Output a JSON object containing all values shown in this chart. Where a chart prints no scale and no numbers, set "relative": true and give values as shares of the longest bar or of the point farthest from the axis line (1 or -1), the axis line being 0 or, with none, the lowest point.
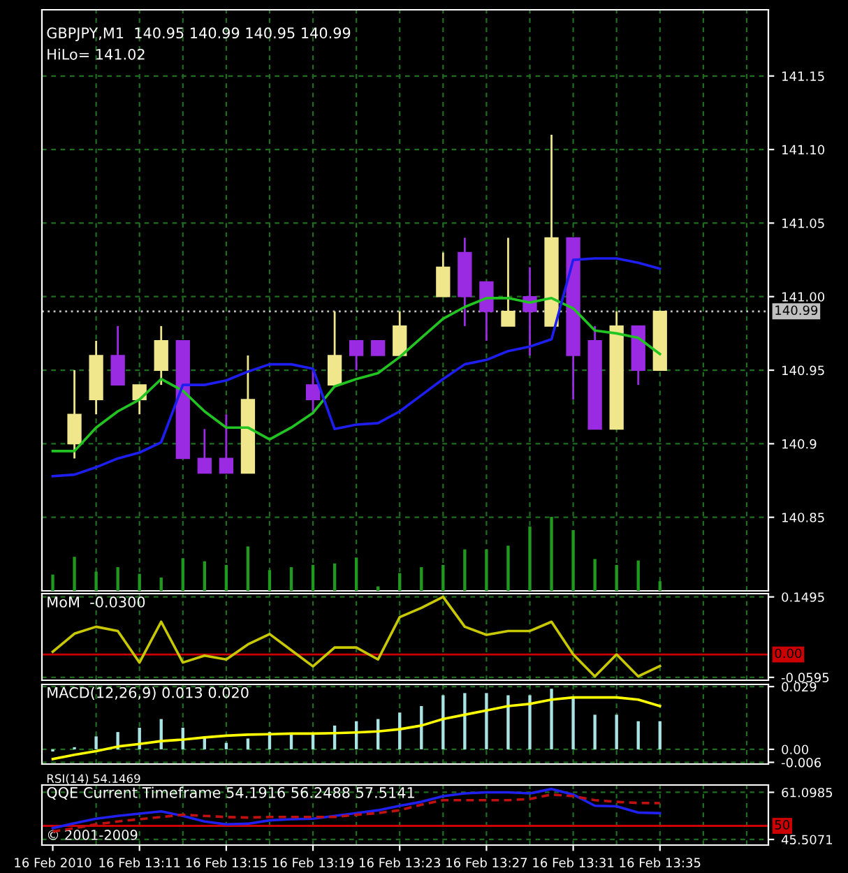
{
  "chart_data": [
    {
      "type": "candlestick",
      "title": "GBPJPY,M1  140.95 140.99 140.95 140.99",
      "subtitle": "HiLo= 141.02",
      "categories": [
        null,
        null,
        null,
        null,
        null,
        null,
        null,
        null,
        null,
        null,
        null,
        null,
        null,
        null,
        null,
        null,
        null,
        null,
        null,
        null,
        null,
        null,
        null,
        null,
        null,
        null,
        null,
        null,
        null
      ],
      "ohlc": [
        null,
        [
          140.9,
          140.95,
          140.89,
          140.92
        ],
        [
          140.93,
          140.97,
          140.92,
          140.96
        ],
        [
          140.96,
          140.98,
          140.94,
          140.94
        ],
        [
          140.93,
          140.94,
          140.92,
          140.94
        ],
        [
          140.95,
          140.98,
          140.94,
          140.97
        ],
        [
          140.97,
          140.97,
          140.89,
          140.89
        ],
        [
          140.89,
          140.91,
          140.88,
          140.88
        ],
        [
          140.89,
          140.92,
          140.88,
          140.88
        ],
        [
          140.88,
          140.96,
          140.88,
          140.93
        ],
        null,
        null,
        [
          140.94,
          140.95,
          140.92,
          140.93
        ],
        [
          140.94,
          140.99,
          140.94,
          140.96
        ],
        [
          140.97,
          140.97,
          140.95,
          140.96
        ],
        [
          140.97,
          140.97,
          140.96,
          140.96
        ],
        [
          140.96,
          140.99,
          140.96,
          140.98
        ],
        null,
        [
          141.0,
          141.03,
          141.0,
          141.02
        ],
        [
          141.03,
          141.04,
          140.98,
          141.0
        ],
        [
          141.01,
          141.01,
          140.97,
          140.99
        ],
        [
          140.98,
          141.04,
          140.98,
          140.99
        ],
        [
          141.0,
          141.02,
          140.96,
          140.99
        ],
        [
          140.98,
          141.11,
          140.98,
          141.04
        ],
        [
          141.04,
          141.04,
          140.93,
          140.96
        ],
        [
          140.97,
          140.98,
          140.91,
          140.91
        ],
        [
          140.91,
          140.99,
          140.91,
          140.98
        ],
        [
          140.98,
          140.98,
          140.94,
          140.95
        ],
        [
          140.95,
          140.99,
          140.95,
          140.99
        ]
      ],
      "colors": [
        null,
        "#f0e68c",
        "#f0e68c",
        "#9a2be2",
        "#f0e68c",
        "#f0e68c",
        "#9a2be2",
        "#9a2be2",
        "#9a2be2",
        "#f0e68c",
        null,
        null,
        "#9a2be2",
        "#f0e68c",
        "#9a2be2",
        "#9a2be2",
        "#f0e68c",
        null,
        "#f0e68c",
        "#9a2be2",
        "#9a2be2",
        "#f0e68c",
        "#9a2be2",
        "#f0e68c",
        "#9a2be2",
        "#9a2be2",
        "#f0e68c",
        "#9a2be2",
        "#f0e68c"
      ],
      "series": [
        {
          "type": "line",
          "color": "#22c422",
          "values": [
            140.895,
            140.895,
            140.911,
            140.922,
            140.93,
            140.944,
            140.936,
            140.922,
            140.911,
            140.911,
            140.903,
            140.911,
            140.921,
            140.939,
            140.944,
            140.948,
            140.959,
            140.972,
            140.985,
            140.993,
            140.999,
            140.999,
            140.996,
            140.999,
            140.992,
            140.977,
            140.975,
            140.972,
            140.961
          ]
        },
        {
          "type": "line",
          "color": "#1e1ef0",
          "values": [
            140.878,
            140.879,
            140.884,
            140.89,
            140.894,
            140.901,
            140.94,
            140.94,
            140.943,
            140.949,
            140.954,
            140.954,
            140.951,
            140.91,
            140.913,
            140.914,
            140.922,
            140.933,
            140.944,
            140.954,
            140.957,
            140.963,
            140.966,
            140.971,
            141.025,
            141.026,
            141.026,
            141.023,
            141.019
          ]
        }
      ],
      "ylim": [
        140.8,
        141.195
      ],
      "yticks": [
        140.85,
        140.9,
        140.95,
        {
          "value": 141.0,
          "label": "141.00"
        },
        141.05,
        {
          "value": 141.1,
          "label": "141.10"
        },
        141.15
      ],
      "ref_lines": [
        {
          "axis": "y",
          "value": 140.99,
          "label": "140.99",
          "color": "#c0c0c0",
          "line_style": "dotted"
        }
      ],
      "grid": true,
      "tick_labels": "y"
    },
    {
      "type": "bar",
      "relative": true,
      "tick_labels": false,
      "categories": [
        null,
        null,
        null,
        null,
        null,
        null,
        null,
        null,
        null,
        null,
        null,
        null,
        null,
        null,
        null,
        null,
        null,
        null,
        null,
        null,
        null,
        null,
        null,
        null,
        null,
        null,
        null,
        null,
        null
      ],
      "series": [
        {
          "color": "#1f9a1f",
          "values": [
            0.22,
            0.46,
            0.26,
            0.32,
            0.23,
            0.18,
            0.44,
            0.4,
            0.35,
            0.6,
            0.28,
            0.32,
            0.35,
            0.37,
            0.45,
            0.06,
            0.24,
            0.32,
            0.35,
            0.56,
            0.56,
            0.61,
            0.87,
            1,
            0.82,
            0.43,
            0.35,
            0.41,
            0.13
          ]
        }
      ]
    },
    {
      "type": "line",
      "title": "MoM  -0.0300",
      "categories": [
        null,
        null,
        null,
        null,
        null,
        null,
        null,
        null,
        null,
        null,
        null,
        null,
        null,
        null,
        null,
        null,
        null,
        null,
        null,
        null,
        null,
        null,
        null,
        null,
        null,
        null,
        null,
        null,
        null
      ],
      "series": [
        {
          "color": "#c8c800",
          "values": [
            0.007,
            0.054,
            0.072,
            0.061,
            -0.021,
            0.085,
            -0.021,
            -0.003,
            -0.013,
            0.026,
            0.053,
            0.011,
            -0.031,
            0.018,
            0.018,
            -0.013,
            0.097,
            0.121,
            0.1495,
            0.072,
            0.051,
            0.061,
            0.061,
            0.085,
            0,
            -0.057,
            0,
            -0.057,
            -0.03
          ]
        }
      ],
      "ylim": [
        -0.067,
        0.158
      ],
      "yticks": [
        0.1495,
        -0.0595
      ],
      "ref_lines": [
        {
          "axis": "y",
          "value": 0,
          "label": "0.00",
          "color": "#cc0000"
        }
      ],
      "grid": true,
      "tick_labels": "y"
    },
    {
      "type": "bar",
      "title": "MACD(12,26,9) 0.013 0.020",
      "annotations": [
        "RSI(14) 54.1469"
      ],
      "categories": [
        null,
        null,
        null,
        null,
        null,
        null,
        null,
        null,
        null,
        null,
        null,
        null,
        null,
        null,
        null,
        null,
        null,
        null,
        null,
        null,
        null,
        null,
        null,
        null,
        null,
        null,
        null,
        null,
        null
      ],
      "series": [
        {
          "type": "bar",
          "color": "#a8e4e4",
          "values": [
            -0.001,
            0.001,
            0.006,
            0.008,
            0.01,
            0.014,
            0.01,
            0.006,
            0.003,
            0.005,
            0.008,
            0.007,
            0.007,
            0.011,
            0.013,
            0.014,
            0.017,
            0.02,
            0.025,
            0.026,
            0.026,
            0.025,
            0.025,
            0.028,
            0.024,
            0.016,
            0.016,
            0.013,
            0.013
          ]
        },
        {
          "type": "line",
          "color": "#ffff00",
          "values": [
            -0.0045,
            -0.0025,
            -0.0008,
            0.0013,
            0.0025,
            0.0038,
            0.0045,
            0.0055,
            0.0063,
            0.0068,
            0.007,
            0.0073,
            0.0073,
            0.0075,
            0.0078,
            0.0083,
            0.0093,
            0.011,
            0.014,
            0.016,
            0.018,
            0.02,
            0.021,
            0.023,
            0.024,
            0.024,
            0.024,
            0.023,
            0.02
          ]
        }
      ],
      "ylim": [
        -0.0068,
        0.03
      ],
      "yticks": [
        0.029,
        {
          "value": 0,
          "label": "0.00"
        },
        -0.006
      ],
      "grid": true,
      "tick_labels": "y"
    },
    {
      "type": "line",
      "title": "QQE Current Timeframe 54.1916 56.2488 57.5141",
      "categories": [
        "16 Feb 2010",
        null,
        null,
        null,
        "16 Feb 13:11",
        null,
        null,
        null,
        "16 Feb 13:15",
        null,
        null,
        null,
        "16 Feb 13:19",
        null,
        null,
        null,
        "16 Feb 13:23",
        null,
        null,
        null,
        "16 Feb 13:27",
        null,
        null,
        null,
        "16 Feb 13:31",
        null,
        null,
        null,
        "16 Feb 13:35"
      ],
      "series": [
        {
          "color": "#2020f0",
          "values": [
            49.22,
            50.89,
            52.37,
            53.3,
            54.04,
            54.79,
            53.3,
            51.45,
            50.52,
            50.71,
            51.82,
            52.19,
            52.37,
            53.3,
            54.23,
            55.16,
            56.64,
            57.94,
            59.8,
            60.73,
            61.1,
            61.1,
            60.73,
            62.21,
            60.36,
            56.64,
            56.46,
            54.4,
            54.19
          ]
        },
        {
          "color": "#c01010",
          "line_style": "dashed",
          "values": [
            48.11,
            49.22,
            50.52,
            51.45,
            52.19,
            52.93,
            53.67,
            53.3,
            52.93,
            52.75,
            52.93,
            52.93,
            52.93,
            52.93,
            53.67,
            54.23,
            55.16,
            57.01,
            58.5,
            58.5,
            58.5,
            58.5,
            58.87,
            60.36,
            59.8,
            58.5,
            57.94,
            57.57,
            57.51
          ]
        }
      ],
      "ylim": [
        43.65,
        63.51
      ],
      "yticks": [
        61.0985,
        45.5071
      ],
      "ref_lines": [
        {
          "axis": "y",
          "value": 50,
          "label": "50",
          "color": "#cc0000"
        }
      ],
      "annotations": [
        "© 2001-2009"
      ],
      "grid": true
    }
  ]
}
